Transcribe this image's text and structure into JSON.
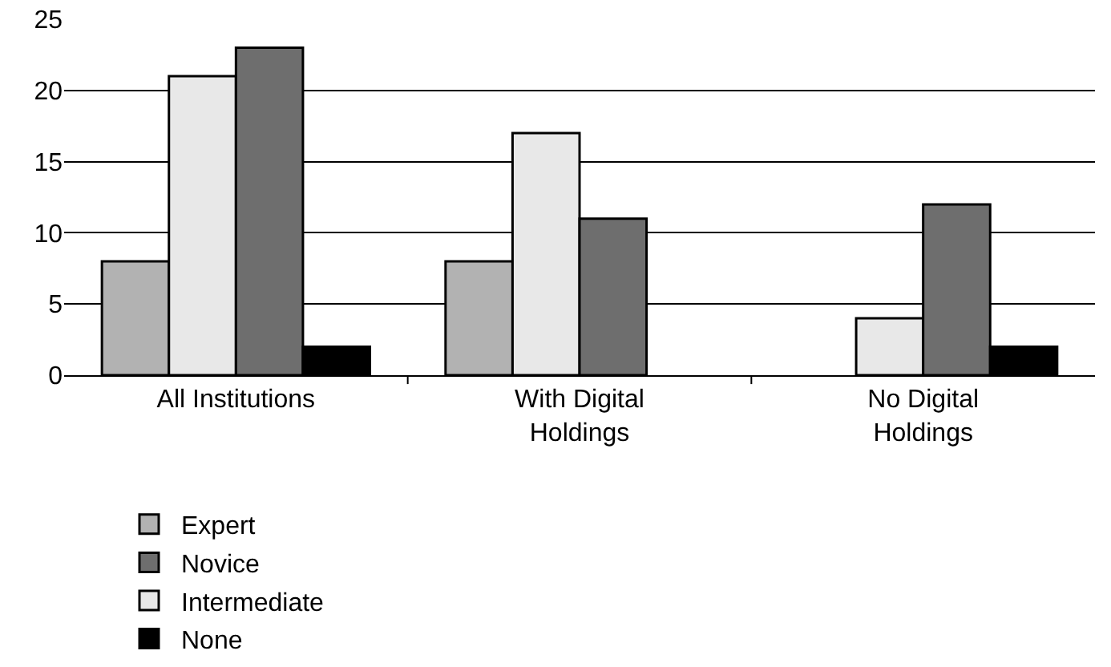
{
  "chart_data": {
    "type": "bar",
    "categories": [
      "All Institutions",
      "With Digital Holdings",
      "No Digital Holdings"
    ],
    "series": [
      {
        "name": "Expert",
        "color": "#b2b2b2",
        "values": [
          8,
          8,
          null
        ]
      },
      {
        "name": "Intermediate",
        "color": "#e8e8e8",
        "values": [
          21,
          17,
          4
        ]
      },
      {
        "name": "Novice",
        "color": "#6e6e6e",
        "values": [
          23,
          11,
          12
        ]
      },
      {
        "name": "None",
        "color": "#000000",
        "values": [
          2,
          null,
          2
        ]
      }
    ],
    "ylim": [
      0,
      25
    ],
    "yticks": [
      0,
      5,
      10,
      15,
      20,
      25
    ],
    "grid": "y",
    "legend": "bottom"
  }
}
